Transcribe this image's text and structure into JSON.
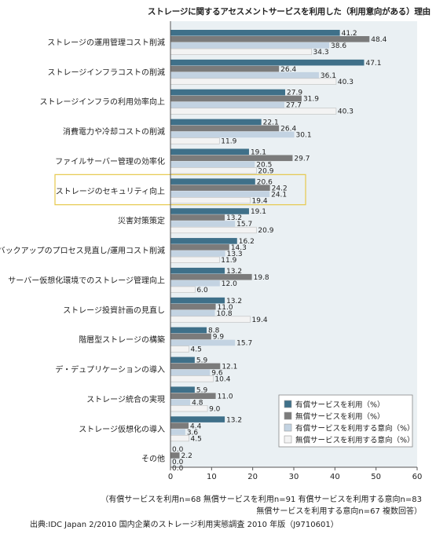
{
  "chart_data": {
    "type": "bar",
    "orientation": "horizontal",
    "title": "ストレージに関するアセスメントサービスを利用した（利用意向がある）理由",
    "xlim": [
      0,
      60
    ],
    "xticks": [
      0,
      10,
      20,
      30,
      40,
      50,
      60
    ],
    "grid": false,
    "legend_position": "bottom-right",
    "highlighted_category": "ストレージのセキュリティ向上",
    "categories": [
      "ストレージの運用管理コスト削減",
      "ストレージインフラコストの削減",
      "ストレージインフラの利用効率向上",
      "消費電力や冷却コストの削減",
      "ファイルサーバー管理の効率化",
      "ストレージのセキュリティ向上",
      "災害対策策定",
      "バックアップのプロセス見直し/運用コスト削減",
      "サーバー仮想化環境でのストレージ管理向上",
      "ストレージ投資計画の見直し",
      "階層型ストレージの構築",
      "デ・デュプリケーションの導入",
      "ストレージ統合の実現",
      "ストレージ仮想化の導入",
      "その他"
    ],
    "series": [
      {
        "name": "有償サービスを利用（%）",
        "color": "#3f7089",
        "values": [
          41.2,
          47.1,
          27.9,
          22.1,
          19.1,
          20.6,
          19.1,
          16.2,
          13.2,
          13.2,
          8.8,
          5.9,
          5.9,
          13.2,
          0.0
        ]
      },
      {
        "name": "無償サービスを利用（%）",
        "color": "#7b7b7b",
        "values": [
          48.4,
          26.4,
          31.9,
          26.4,
          29.7,
          24.2,
          13.2,
          14.3,
          19.8,
          11.0,
          9.9,
          12.1,
          11.0,
          4.4,
          2.2
        ]
      },
      {
        "name": "有償サービスを利用する意向（%）",
        "color": "#c3d3e2",
        "values": [
          38.6,
          36.1,
          27.7,
          30.1,
          20.5,
          24.1,
          15.7,
          13.3,
          12.0,
          10.8,
          15.7,
          9.6,
          4.8,
          3.6,
          0.0
        ]
      },
      {
        "name": "無償サービスを利用する意向（%）",
        "color": "#f3f3f3",
        "values": [
          34.3,
          40.3,
          40.3,
          11.9,
          20.9,
          19.4,
          20.9,
          11.9,
          6.0,
          19.4,
          4.5,
          10.4,
          9.0,
          4.5,
          0.0
        ]
      }
    ],
    "value_labels": [
      [
        "41.2",
        "48.4",
        "38.6",
        "34.3"
      ],
      [
        "47.1",
        "26.4",
        "36.1",
        "40.3"
      ],
      [
        "27.9",
        "31.9",
        "27.7",
        "40.3"
      ],
      [
        "22.1",
        "26.4",
        "30.1",
        "11.9"
      ],
      [
        "19.1",
        "29.7",
        "20.5",
        "20.9"
      ],
      [
        "20.6",
        "24.2",
        "24.1",
        "19.4"
      ],
      [
        "19.1",
        "13.2",
        "15.7",
        "20.9"
      ],
      [
        "16.2",
        "14.3",
        "13.3",
        "11.9"
      ],
      [
        "13.2",
        "19.8",
        "12.0",
        "6.0"
      ],
      [
        "13.2",
        "11.0",
        "10.8",
        "19.4"
      ],
      [
        "8.8",
        "9.9",
        "15.7",
        "4.5"
      ],
      [
        "5.9",
        "12.1",
        "9.6",
        "10.4"
      ],
      [
        "5.9",
        "11.0",
        "4.8",
        "9.0"
      ],
      [
        "13.2",
        "4.4",
        "3.6",
        "4.5"
      ],
      [
        "0.0",
        "2.2",
        "0.0",
        "0.0"
      ]
    ]
  },
  "notes": {
    "sample_sizes": "（有償サービスを利用n=68 無償サービスを利用n=91 有償サービスを利用する意向n=83",
    "sample_sizes_2": "無償サービスを利用する意向n=67 複数回答）",
    "source": "出典:IDC Japan 2/2010 国内企業のストレージ利用実態調査 2010 年版（J9710601）"
  }
}
